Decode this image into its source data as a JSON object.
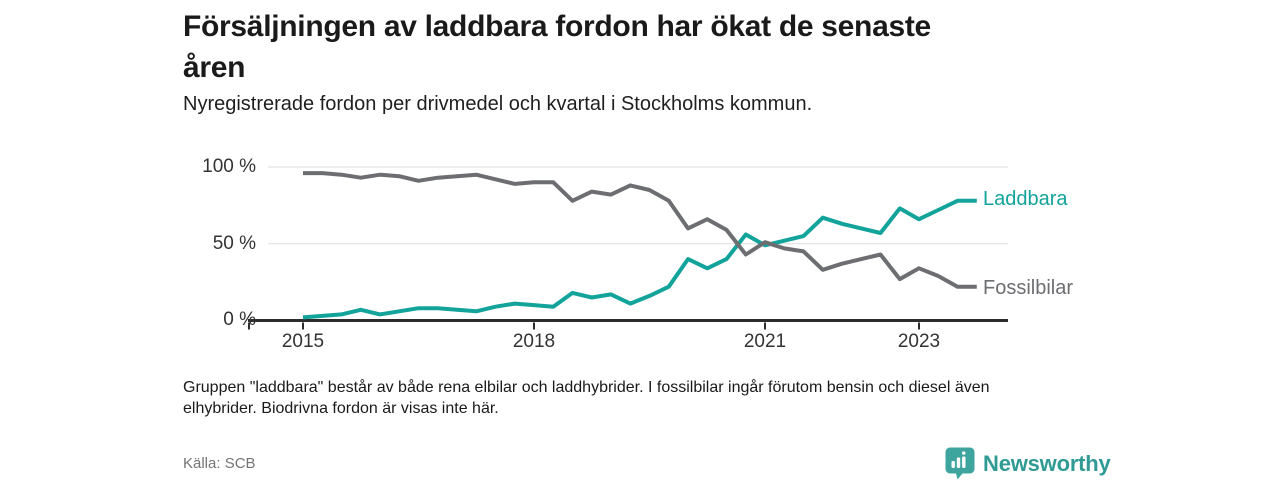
{
  "chart_data": {
    "type": "line",
    "title": "Försäljningen av laddbara fordon har ökat de senaste åren",
    "title_lines": [
      "Försäljningen av laddbara fordon har ökat de senaste",
      "åren"
    ],
    "subtitle": "Nyregistrerade fordon per drivmedel och kvartal i Stockholms kommun.",
    "footnote_lines": [
      "Gruppen \"laddbara\" består av både rena elbilar och laddhybrider. I fossilbilar ingår förutom bensin och diesel även",
      "elhybrider. Biodrivna fordon är visas inte här."
    ],
    "source": "Källa: SCB",
    "unit": "%",
    "ylim": [
      0,
      100
    ],
    "grid": true,
    "legend_position": "right-of-line-ends",
    "yticks": [
      {
        "label": "100 %",
        "value": 100
      },
      {
        "label": "50 %",
        "value": 50
      },
      {
        "label": "0 %",
        "value": 0
      }
    ],
    "xticks": [
      {
        "label": "2015",
        "quarter_index": 0
      },
      {
        "label": "2018",
        "quarter_index": 12
      },
      {
        "label": "2021",
        "quarter_index": 24
      },
      {
        "label": "2023",
        "quarter_index": 32
      }
    ],
    "quarters": [
      "2015 Q1",
      "2015 Q2",
      "2015 Q3",
      "2015 Q4",
      "2016 Q1",
      "2016 Q2",
      "2016 Q3",
      "2016 Q4",
      "2017 Q1",
      "2017 Q2",
      "2017 Q3",
      "2017 Q4",
      "2018 Q1",
      "2018 Q2",
      "2018 Q3",
      "2018 Q4",
      "2019 Q1",
      "2019 Q2",
      "2019 Q3",
      "2019 Q4",
      "2020 Q1",
      "2020 Q2",
      "2020 Q3",
      "2020 Q4",
      "2021 Q1",
      "2021 Q2",
      "2021 Q3",
      "2021 Q4",
      "2022 Q1",
      "2022 Q2",
      "2022 Q3",
      "2022 Q4",
      "2023 Q1",
      "2023 Q2",
      "2023 Q3",
      "2023 Q4"
    ],
    "series": [
      {
        "name": "Laddbara",
        "color": "#12a39a",
        "values": [
          2,
          3,
          4,
          7,
          4,
          6,
          8,
          8,
          7,
          6,
          9,
          11,
          10,
          9,
          18,
          15,
          17,
          11,
          16,
          22,
          40,
          34,
          40,
          56,
          49,
          52,
          55,
          67,
          63,
          60,
          57,
          73,
          66,
          72,
          78,
          78
        ]
      },
      {
        "name": "Fossilbilar",
        "color": "#6d6e72",
        "values": [
          96,
          96,
          95,
          93,
          95,
          94,
          91,
          93,
          94,
          95,
          92,
          89,
          90,
          90,
          78,
          84,
          82,
          88,
          85,
          78,
          60,
          66,
          59,
          43,
          51,
          47,
          45,
          33,
          37,
          40,
          43,
          27,
          34,
          29,
          22,
          22
        ]
      }
    ]
  },
  "branding": {
    "logo_text": "Newsworthy",
    "logo_text_color": "#2f9b94",
    "logo_icon_color": "#3da49e"
  },
  "colors": {
    "grid": "#dedede",
    "axis": "#2d2d2d",
    "tick": "#2d2d2d"
  }
}
